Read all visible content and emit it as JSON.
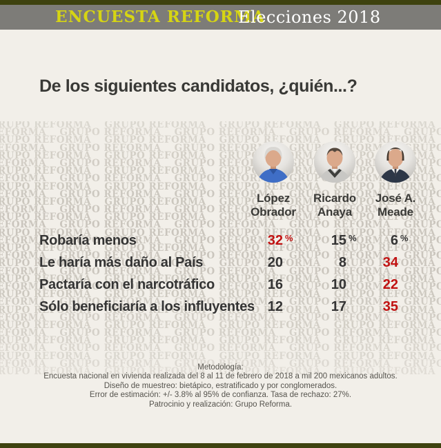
{
  "header": {
    "brand": "ENCUESTA REFORMA",
    "edition": "Elecciones 2018"
  },
  "title": "De los siguientes candidatos, ¿quién...?",
  "watermark_text": "GRUPO REFORMA",
  "candidates": [
    {
      "name_line1": "López",
      "name_line2": "Obrador"
    },
    {
      "name_line1": "Ricardo",
      "name_line2": "Anaya"
    },
    {
      "name_line1": "José A.",
      "name_line2": "Meade"
    }
  ],
  "table": {
    "rows": [
      {
        "label": "Robaría menos",
        "values": [
          {
            "v": "32",
            "unit": "%",
            "color": "#c11212"
          },
          {
            "v": "15",
            "unit": "%",
            "color": "#343434"
          },
          {
            "v": "6",
            "unit": "%",
            "color": "#343434"
          }
        ]
      },
      {
        "label": "Le haría más daño al País",
        "values": [
          {
            "v": "20",
            "color": "#343434"
          },
          {
            "v": "8",
            "color": "#343434"
          },
          {
            "v": "34",
            "color": "#c11212"
          }
        ]
      },
      {
        "label": "Pactaría con el narcotráfico",
        "values": [
          {
            "v": "16",
            "color": "#343434"
          },
          {
            "v": "10",
            "color": "#343434"
          },
          {
            "v": "22",
            "color": "#c11212"
          }
        ]
      },
      {
        "label": "Sólo beneficiaría a los influyentes",
        "values": [
          {
            "v": "12",
            "color": "#343434"
          },
          {
            "v": "17",
            "color": "#343434"
          },
          {
            "v": "35",
            "color": "#c11212"
          }
        ]
      }
    ]
  },
  "methodology": {
    "title": "Metodología:",
    "lines": [
      "Encuesta nacional en vivienda realizada del 8 al 11 de febrero de 2018 a mil 200 mexicanos adultos.",
      "Diseño de muestreo: bietápico, estratificado y por conglomerados.",
      "Error de estimación: +/- 3.8% al 95% de confianza. Tasa de rechazo: 27%.",
      "Patrocinio y realización: Grupo Reforma."
    ]
  },
  "colors": {
    "accent_yellow": "#d6d513",
    "olive_bar": "#3e420f",
    "gray_band": "#7d7c78",
    "background": "#f2efe9",
    "text_dark": "#343434",
    "highlight_red": "#c11212"
  },
  "chart_data": {
    "type": "table",
    "title": "De los siguientes candidatos, ¿quién...?",
    "columns": [
      "López Obrador",
      "Ricardo Anaya",
      "José A. Meade"
    ],
    "rows": [
      "Robaría menos",
      "Le haría más daño al País",
      "Pactaría con el narcotráfico",
      "Sólo beneficiaría a los influyentes"
    ],
    "series": [
      {
        "name": "López Obrador",
        "values": [
          32,
          20,
          16,
          12
        ]
      },
      {
        "name": "Ricardo Anaya",
        "values": [
          15,
          8,
          10,
          17
        ]
      },
      {
        "name": "José A. Meade",
        "values": [
          6,
          34,
          22,
          35
        ]
      }
    ],
    "unit": "%",
    "layout_hint": "highest value in each row rendered in red"
  }
}
